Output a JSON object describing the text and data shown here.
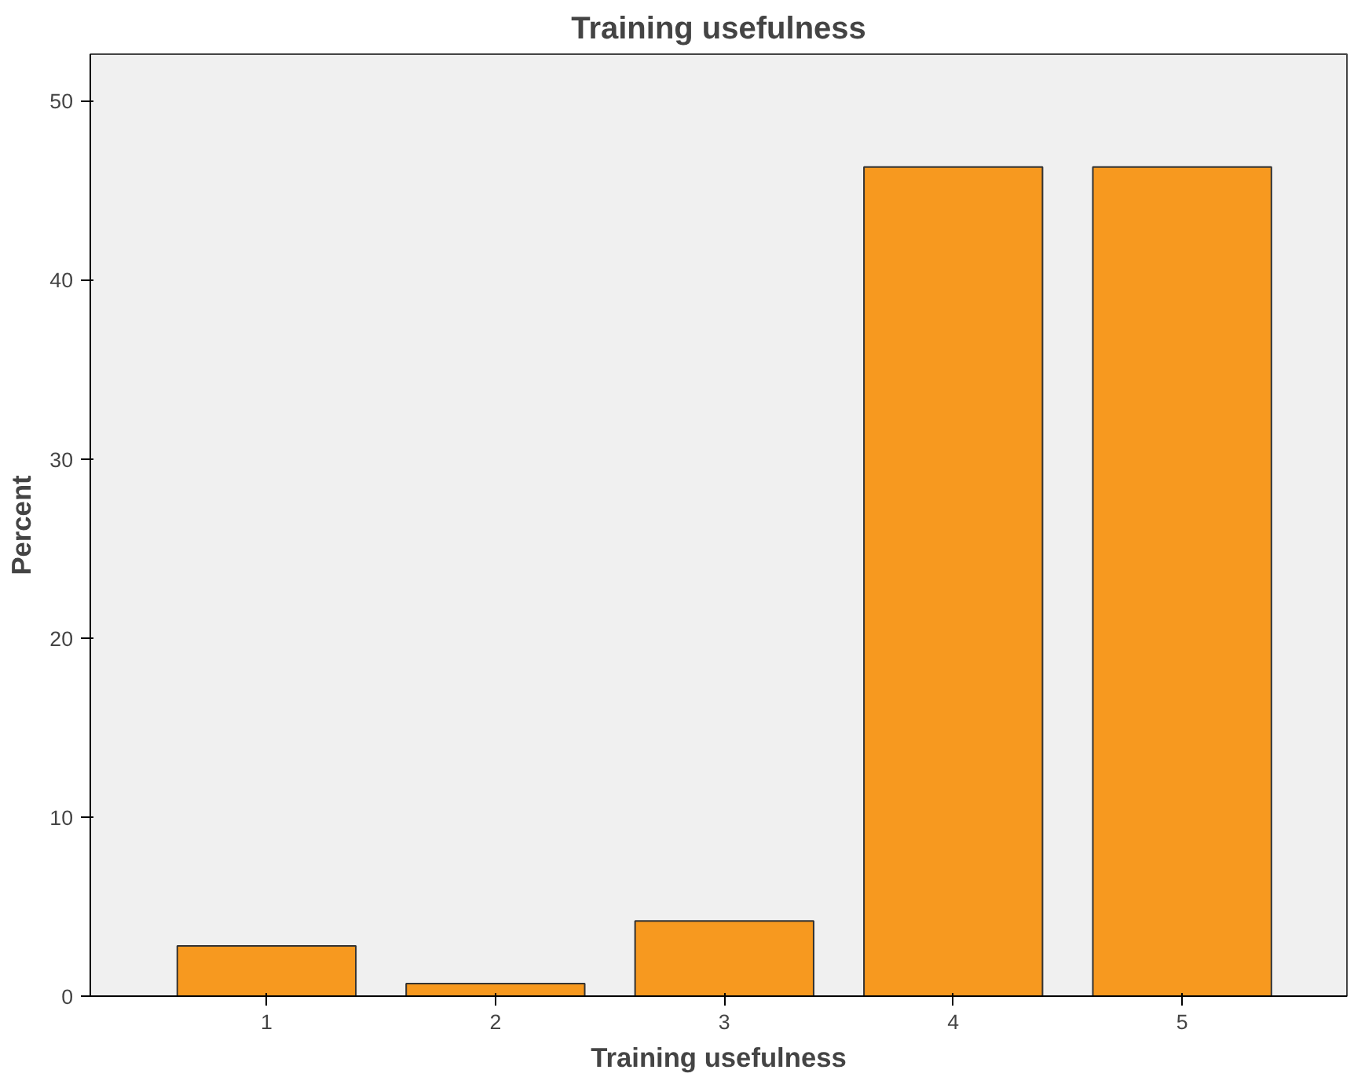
{
  "chart_data": {
    "type": "bar",
    "title": "Training usefulness",
    "xlabel": "Training usefulness",
    "ylabel": "Percent",
    "categories": [
      "1",
      "2",
      "3",
      "4",
      "5"
    ],
    "values": [
      2.8,
      0.7,
      4.2,
      46.3,
      46.3
    ],
    "color": "#f7991f",
    "ylim": [
      0,
      52.6
    ],
    "yticks": [
      0,
      10,
      20,
      30,
      40,
      50
    ],
    "grid": false
  }
}
